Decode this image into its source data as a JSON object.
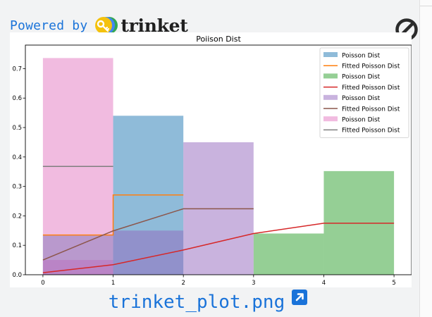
{
  "powered": {
    "label": "Powered by",
    "brand": "trinket"
  },
  "file": {
    "name": "trinket_plot.png"
  },
  "colors": {
    "link": "#1a73d9",
    "canvas": "#f2f3f4"
  },
  "icons": {
    "logo": "trinket-key-logo",
    "block": "no-entry-icon",
    "open": "open-external-icon"
  },
  "chart_data": {
    "type": "bar",
    "title": "Poiison Dist",
    "xlabel": "",
    "ylabel": "",
    "xlim": [
      -0.25,
      5.25
    ],
    "ylim": [
      0,
      0.78
    ],
    "xticks": [
      "0",
      "1",
      "2",
      "3",
      "4",
      "5"
    ],
    "yticks": [
      "0.0",
      "0.1",
      "0.2",
      "0.3",
      "0.4",
      "0.5",
      "0.6",
      "0.7"
    ],
    "legend_position": "top-right",
    "series": [
      {
        "name": "Poisson Dist",
        "kind": "hist",
        "color": "#1f77b4",
        "bins": [
          0,
          1,
          2,
          3,
          4,
          5
        ],
        "values": [
          0.135,
          0.54,
          0.0,
          0.0,
          0.0
        ]
      },
      {
        "name": "Fitted Poisson Dist",
        "kind": "line",
        "color": "#ff7f0e",
        "x": [
          0,
          1,
          2
        ],
        "y": [
          0.135,
          0.271,
          0.271
        ],
        "drawstyle": "steps-post"
      },
      {
        "name": "Poisson Dist",
        "kind": "hist",
        "color": "#2ca02c",
        "bins": [
          0,
          1,
          2,
          3,
          4,
          5
        ],
        "values": [
          0.0,
          0.0,
          0.0,
          0.14,
          0.352
        ]
      },
      {
        "name": "Fitted Poisson Dist",
        "kind": "line",
        "color": "#d62728",
        "x": [
          0,
          1,
          2,
          3,
          4,
          5
        ],
        "y": [
          0.007,
          0.034,
          0.084,
          0.14,
          0.175,
          0.175
        ],
        "drawstyle": "default"
      },
      {
        "name": "Poisson Dist",
        "kind": "hist",
        "color": "#9467bd",
        "bins": [
          0,
          1,
          2,
          3,
          4,
          5
        ],
        "values": [
          0.05,
          0.15,
          0.45,
          0.0,
          0.0
        ]
      },
      {
        "name": "Fitted Poisson Dist",
        "kind": "line",
        "color": "#8c564b",
        "x": [
          0,
          1,
          2,
          3
        ],
        "y": [
          0.05,
          0.149,
          0.224,
          0.224
        ],
        "drawstyle": "default"
      },
      {
        "name": "Poisson Dist",
        "kind": "hist",
        "color": "#e377c2",
        "bins": [
          0,
          1,
          2,
          3,
          4,
          5
        ],
        "values": [
          0.736,
          0.0,
          0.0,
          0.0,
          0.0
        ]
      },
      {
        "name": "Fitted Poisson Dist",
        "kind": "line",
        "color": "#7f7f7f",
        "x": [
          0,
          1
        ],
        "y": [
          0.368,
          0.368
        ],
        "drawstyle": "default"
      }
    ]
  }
}
